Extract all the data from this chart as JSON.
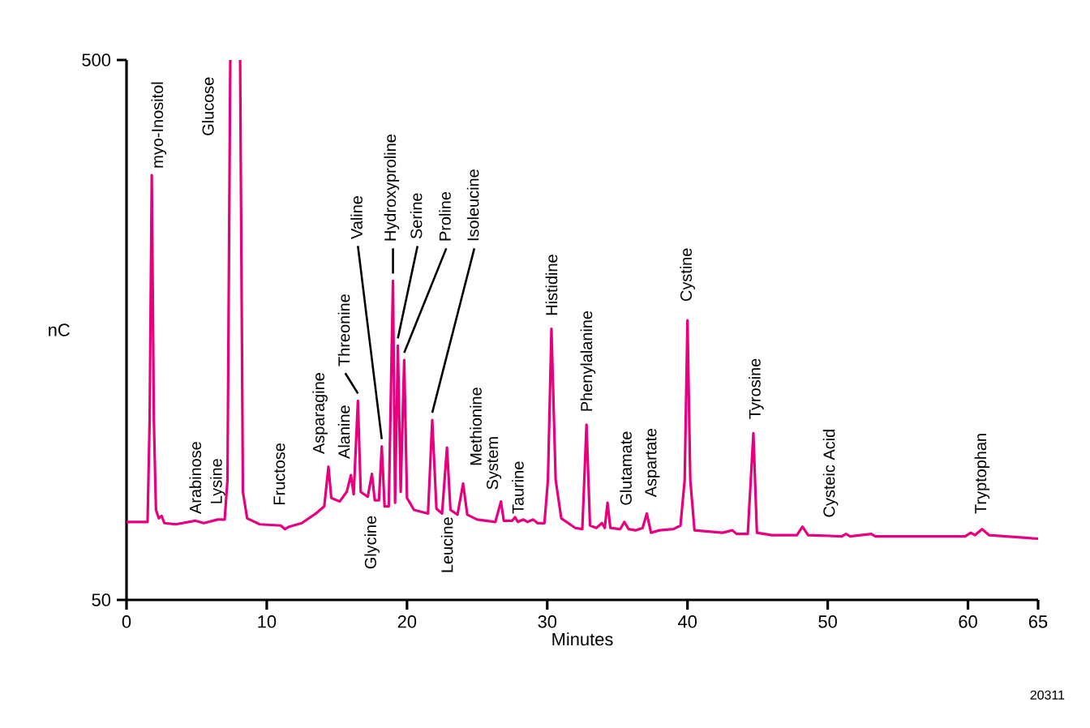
{
  "chart_data": {
    "type": "line",
    "xlabel": "Minutes",
    "ylabel": "nC",
    "xlim": [
      0,
      65
    ],
    "ylim": [
      50,
      500
    ],
    "xticks": [
      0,
      10,
      20,
      30,
      40,
      50,
      60,
      65
    ],
    "yticks": [
      50,
      500
    ],
    "grid": false,
    "marker": "none",
    "line_style": "solid",
    "series": [
      {
        "color": "#e6007e",
        "x": [
          0,
          1.5,
          1.65,
          1.8,
          1.95,
          2.1,
          2.3,
          2.5,
          2.7,
          3.5,
          4.9,
          5.5,
          6.5,
          7.0,
          7.2,
          7.4,
          7.75,
          8.1,
          8.3,
          8.6,
          9.5,
          11.0,
          11.3,
          11.6,
          12.5,
          13.5,
          14.1,
          14.4,
          14.6,
          15.2,
          15.7,
          16.0,
          16.2,
          16.5,
          16.7,
          17.2,
          17.5,
          17.7,
          18.0,
          18.2,
          18.4,
          18.7,
          19.0,
          19.15,
          19.35,
          19.55,
          19.8,
          20.0,
          20.5,
          21.5,
          21.8,
          22.1,
          22.5,
          22.85,
          23.1,
          23.6,
          24.0,
          24.3,
          25.0,
          26.3,
          26.7,
          26.9,
          27.5,
          27.7,
          27.9,
          28.3,
          28.6,
          29.0,
          29.3,
          29.8,
          30.05,
          30.3,
          30.6,
          31.0,
          32.0,
          32.5,
          32.8,
          33.05,
          33.5,
          33.9,
          34.1,
          34.3,
          34.5,
          35.2,
          35.5,
          35.8,
          36.3,
          36.8,
          37.1,
          37.4,
          38.0,
          39.0,
          39.5,
          39.8,
          40.0,
          40.2,
          40.5,
          42.5,
          43.2,
          43.5,
          44.3,
          44.7,
          44.95,
          46.0,
          47.8,
          48.2,
          48.6,
          51.0,
          51.3,
          51.6,
          53.1,
          53.4,
          59.8,
          60.2,
          60.5,
          61.0,
          61.5,
          65.0
        ],
        "values": [
          115,
          115,
          200,
          404,
          200,
          125,
          118,
          120,
          114,
          113,
          116,
          114,
          117,
          117,
          150,
          500,
          null,
          500,
          140,
          118,
          113,
          112,
          109,
          111,
          114,
          122,
          128,
          161,
          135,
          132,
          140,
          154,
          138,
          216,
          140,
          136,
          155,
          133,
          133,
          178,
          128,
          128,
          316,
          131,
          262,
          140,
          250,
          135,
          125,
          122,
          200,
          126,
          122,
          177,
          125,
          121,
          147,
          121,
          117,
          115,
          132,
          116,
          116,
          119,
          115,
          117,
          115,
          117,
          114,
          114,
          150,
          276,
          150,
          118,
          110,
          109,
          196,
          112,
          110,
          114,
          110,
          131,
          110,
          109,
          115,
          109,
          108,
          110,
          122,
          106,
          108,
          109,
          112,
          150,
          283,
          150,
          108,
          106,
          108,
          105,
          105,
          189,
          106,
          104,
          104,
          111,
          104,
          103,
          105,
          103,
          105,
          103,
          103,
          106,
          104,
          109,
          104,
          101
        ]
      }
    ],
    "annotations": [
      {
        "text": "myo-Inositol",
        "x": 1.8,
        "y": 404
      },
      {
        "text": "Arabinose",
        "x": 4.9,
        "y": 116
      },
      {
        "text": "Lysine",
        "x": 6.5,
        "y": 117
      },
      {
        "text": "Glucose",
        "x": 7.75,
        "y": 500
      },
      {
        "text": "Fructose",
        "x": 11.3,
        "y": 109
      },
      {
        "text": "Asparagine",
        "x": 14.4,
        "y": 161
      },
      {
        "text": "Alanine",
        "x": 16.0,
        "y": 154
      },
      {
        "text": "Threonine",
        "x": 16.5,
        "y": 216
      },
      {
        "text": "Glycine",
        "x": 17.5,
        "y": 155
      },
      {
        "text": "Valine",
        "x": 18.2,
        "y": 178
      },
      {
        "text": "Hydroxyproline",
        "x": 19.0,
        "y": 316
      },
      {
        "text": "Serine",
        "x": 19.35,
        "y": 262
      },
      {
        "text": "Proline",
        "x": 19.8,
        "y": 250
      },
      {
        "text": "Isoleucine",
        "x": 21.8,
        "y": 200
      },
      {
        "text": "Leucine",
        "x": 22.85,
        "y": 125
      },
      {
        "text": "Methionine",
        "x": 24.0,
        "y": 147
      },
      {
        "text": "System",
        "x": 26.7,
        "y": 132
      },
      {
        "text": "Taurine",
        "x": 27.7,
        "y": 119
      },
      {
        "text": "Histidine",
        "x": 30.3,
        "y": 276
      },
      {
        "text": "Phenylalanine",
        "x": 32.8,
        "y": 196
      },
      {
        "text": "Glutamate",
        "x": 34.3,
        "y": 131
      },
      {
        "text": "Aspartate",
        "x": 37.1,
        "y": 122
      },
      {
        "text": "Cystine",
        "x": 40.0,
        "y": 283
      },
      {
        "text": "Tyrosine",
        "x": 44.7,
        "y": 189
      },
      {
        "text": "Cysteic Acid",
        "x": 48.2,
        "y": 111
      },
      {
        "text": "Tryptophan",
        "x": 61.0,
        "y": 109
      },
      "20311"
    ]
  }
}
